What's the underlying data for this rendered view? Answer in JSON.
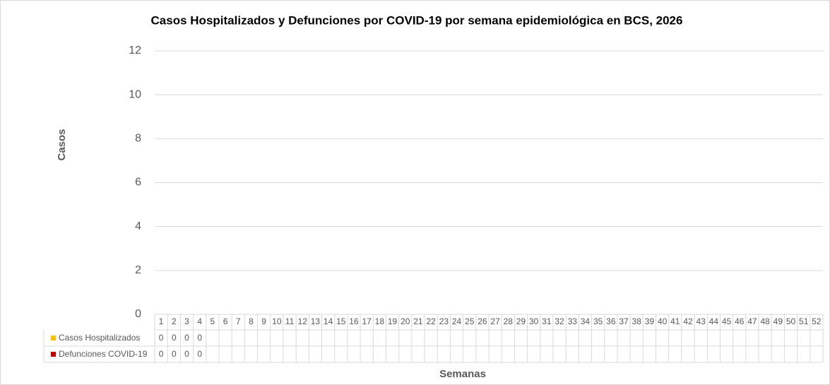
{
  "chart_data": {
    "type": "bar",
    "title": "Casos Hospitalizados y Defunciones por COVID-19 por semana epidemiológica en BCS, 2026",
    "y_label": "Casos",
    "x_label": "Semanas",
    "categories": [
      "1",
      "2",
      "3",
      "4",
      "5",
      "6",
      "7",
      "8",
      "9",
      "10",
      "11",
      "12",
      "13",
      "14",
      "15",
      "16",
      "17",
      "18",
      "19",
      "20",
      "21",
      "22",
      "23",
      "24",
      "25",
      "26",
      "27",
      "28",
      "29",
      "30",
      "31",
      "32",
      "33",
      "34",
      "35",
      "36",
      "37",
      "38",
      "39",
      "40",
      "41",
      "42",
      "43",
      "44",
      "45",
      "46",
      "47",
      "48",
      "49",
      "50",
      "51",
      "52"
    ],
    "series": [
      {
        "name": "Casos Hospitalizados",
        "color": "#ffc000",
        "values": [
          0,
          0,
          0,
          0,
          null,
          null,
          null,
          null,
          null,
          null,
          null,
          null,
          null,
          null,
          null,
          null,
          null,
          null,
          null,
          null,
          null,
          null,
          null,
          null,
          null,
          null,
          null,
          null,
          null,
          null,
          null,
          null,
          null,
          null,
          null,
          null,
          null,
          null,
          null,
          null,
          null,
          null,
          null,
          null,
          null,
          null,
          null,
          null,
          null,
          null,
          null,
          null
        ]
      },
      {
        "name": "Defunciones COVID-19",
        "color": "#c00000",
        "values": [
          0,
          0,
          0,
          0,
          null,
          null,
          null,
          null,
          null,
          null,
          null,
          null,
          null,
          null,
          null,
          null,
          null,
          null,
          null,
          null,
          null,
          null,
          null,
          null,
          null,
          null,
          null,
          null,
          null,
          null,
          null,
          null,
          null,
          null,
          null,
          null,
          null,
          null,
          null,
          null,
          null,
          null,
          null,
          null,
          null,
          null,
          null,
          null,
          null,
          null,
          null,
          null
        ]
      }
    ],
    "ylim": [
      0,
      12
    ],
    "yticks": [
      0,
      2,
      4,
      6,
      8,
      10,
      12
    ],
    "grid": true,
    "data_table": true
  }
}
